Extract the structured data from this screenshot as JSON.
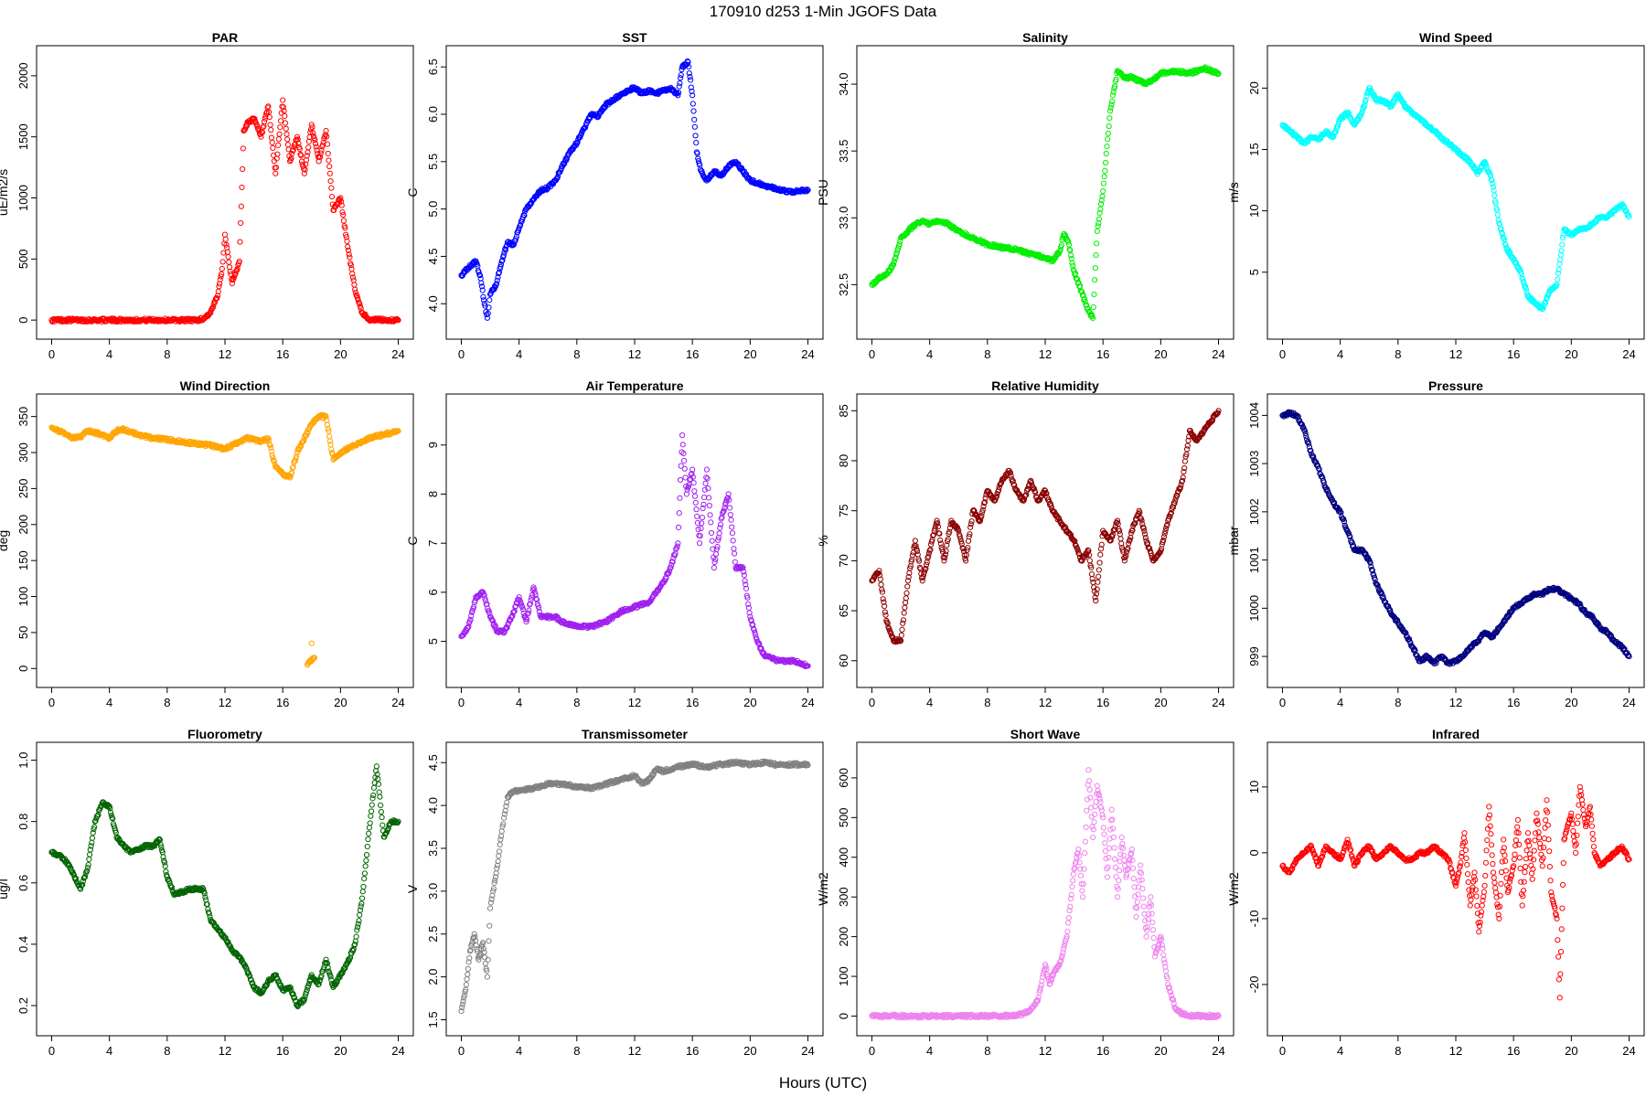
{
  "title": "170910   d253   1-Min  JGOFS Data",
  "xlabel": "Hours (UTC)",
  "chart_data": [
    {
      "type": "scatter",
      "title": "PAR",
      "ylabel": "uE/m2/s",
      "color": "#ff0000",
      "xlim": [
        0,
        24
      ],
      "ylim": [
        -60,
        2150
      ],
      "x_ticks": [
        "0",
        "4",
        "8",
        "12",
        "16",
        "20",
        "24"
      ],
      "y_ticks": [
        "0",
        "500",
        "1000",
        "1500",
        "2000"
      ],
      "x": [
        0,
        2,
        4,
        6,
        8,
        10,
        10.5,
        11,
        11.5,
        11.8,
        12,
        12.5,
        13,
        13.3,
        13.6,
        14,
        14.5,
        15,
        15.5,
        16,
        16.5,
        17,
        17.5,
        18,
        18.5,
        19,
        19.5,
        20,
        20.5,
        21,
        21.5,
        22,
        23,
        24
      ],
      "y": [
        0,
        0,
        0,
        0,
        0,
        0,
        10,
        60,
        200,
        420,
        700,
        300,
        480,
        1550,
        1620,
        1650,
        1500,
        1750,
        1200,
        1800,
        1300,
        1500,
        1200,
        1600,
        1300,
        1550,
        900,
        1000,
        600,
        250,
        60,
        5,
        0,
        0
      ]
    },
    {
      "type": "scatter",
      "title": "SST",
      "ylabel": "C",
      "color": "#0000ff",
      "xlim": [
        0,
        24
      ],
      "ylim": [
        3.75,
        6.6
      ],
      "x_ticks": [
        "0",
        "4",
        "8",
        "12",
        "16",
        "20",
        "24"
      ],
      "y_ticks": [
        "4.0",
        "4.5",
        "5.0",
        "5.5",
        "6.0",
        "6.5"
      ],
      "x": [
        0,
        0.5,
        1,
        1.3,
        1.6,
        1.8,
        2,
        2.4,
        2.8,
        3.2,
        3.6,
        4,
        4.5,
        5,
        5.5,
        6,
        6.5,
        7,
        7.5,
        8,
        8.5,
        9,
        9.5,
        10,
        10.5,
        11,
        11.5,
        12,
        12.5,
        13,
        13.5,
        14,
        14.5,
        15,
        15.3,
        15.7,
        16,
        16.3,
        16.6,
        17,
        17.5,
        18,
        18.5,
        19,
        19.5,
        20,
        21,
        22,
        23,
        24
      ],
      "y": [
        4.3,
        4.38,
        4.45,
        4.3,
        4.0,
        3.85,
        4.1,
        4.2,
        4.45,
        4.65,
        4.62,
        4.8,
        5.0,
        5.1,
        5.2,
        5.22,
        5.3,
        5.45,
        5.6,
        5.7,
        5.85,
        6.0,
        5.98,
        6.1,
        6.15,
        6.2,
        6.25,
        6.28,
        6.22,
        6.25,
        6.22,
        6.25,
        6.28,
        6.2,
        6.5,
        6.55,
        6.2,
        5.6,
        5.4,
        5.3,
        5.4,
        5.35,
        5.45,
        5.5,
        5.4,
        5.3,
        5.25,
        5.2,
        5.18,
        5.2
      ]
    },
    {
      "type": "scatter",
      "title": "Salinity",
      "ylabel": "PSU",
      "color": "#00ee00",
      "xlim": [
        0,
        24
      ],
      "ylim": [
        32.18,
        34.2
      ],
      "x_ticks": [
        "0",
        "4",
        "8",
        "12",
        "16",
        "20",
        "24"
      ],
      "y_ticks": [
        "32.5",
        "33.0",
        "33.5",
        "34.0"
      ],
      "x": [
        0,
        0.5,
        1,
        1.5,
        2,
        2.5,
        3,
        3.5,
        4,
        4.5,
        5,
        6,
        7,
        8,
        9,
        10,
        11,
        12,
        12.5,
        13,
        13.3,
        13.6,
        14,
        14.5,
        15,
        15.3,
        15.6,
        16,
        16.5,
        17,
        17.5,
        18,
        19,
        20,
        21,
        22,
        23,
        24
      ],
      "y": [
        32.5,
        32.55,
        32.58,
        32.65,
        32.85,
        32.9,
        32.95,
        32.98,
        32.95,
        32.98,
        32.97,
        32.9,
        32.85,
        32.8,
        32.78,
        32.76,
        32.73,
        32.7,
        32.68,
        32.75,
        32.88,
        32.82,
        32.6,
        32.45,
        32.3,
        32.25,
        32.9,
        33.2,
        33.8,
        34.1,
        34.05,
        34.05,
        34.0,
        34.08,
        34.1,
        34.08,
        34.12,
        34.08
      ]
    },
    {
      "type": "scatter",
      "title": "Wind Speed",
      "ylabel": "m/s",
      "color": "#00ffff",
      "xlim": [
        0,
        24
      ],
      "ylim": [
        0.5,
        22.5
      ],
      "x_ticks": [
        "0",
        "4",
        "8",
        "12",
        "16",
        "20",
        "24"
      ],
      "y_ticks": [
        "5",
        "10",
        "15",
        "20"
      ],
      "x": [
        0,
        0.5,
        1,
        1.5,
        2,
        2.5,
        3,
        3.5,
        4,
        4.5,
        5,
        5.5,
        6,
        6.5,
        7,
        7.5,
        8,
        8.5,
        9,
        9.5,
        10,
        10.5,
        11,
        11.5,
        12,
        12.5,
        13,
        13.5,
        14,
        14.5,
        15,
        15.5,
        16,
        16.5,
        17,
        17.5,
        18,
        18.5,
        19,
        19.5,
        20,
        20.5,
        21,
        21.5,
        22,
        22.5,
        23,
        23.5,
        24
      ],
      "y": [
        17,
        16.5,
        16,
        15.5,
        16,
        15.8,
        16.5,
        16,
        17.5,
        18,
        17,
        18,
        20,
        19,
        19,
        18.5,
        19.5,
        18.5,
        18,
        17.5,
        17,
        16.5,
        16,
        15.5,
        15,
        14.5,
        14,
        13,
        14,
        12.5,
        9,
        7,
        6,
        5,
        3,
        2.5,
        2,
        3.5,
        4,
        8.5,
        8,
        8.5,
        8.5,
        9,
        9.5,
        9.5,
        10,
        10.5,
        9.5
      ]
    },
    {
      "type": "scatter",
      "title": "Wind Direction",
      "ylabel": "deg",
      "color": "#ffa500",
      "xlim": [
        0,
        24
      ],
      "ylim": [
        -10,
        365
      ],
      "x_ticks": [
        "0",
        "4",
        "8",
        "12",
        "16",
        "20",
        "24"
      ],
      "y_ticks": [
        "0",
        "50",
        "100",
        "150",
        "200",
        "250",
        "300",
        "350"
      ],
      "x": [
        0,
        0.5,
        1,
        1.5,
        2,
        2.5,
        3,
        3.5,
        4,
        4.5,
        5,
        5.5,
        6,
        7,
        8,
        9,
        10,
        11,
        12,
        12.5,
        13,
        13.5,
        14,
        14.5,
        15,
        15.5,
        16,
        16.5,
        17,
        17.5,
        18,
        18.5,
        19,
        19.5,
        20,
        21,
        22,
        23,
        24,
        18,
        17.7,
        18.2
      ],
      "y": [
        335,
        330,
        325,
        320,
        322,
        330,
        328,
        325,
        320,
        330,
        332,
        328,
        325,
        320,
        318,
        315,
        312,
        310,
        305,
        310,
        315,
        320,
        318,
        315,
        320,
        280,
        270,
        265,
        300,
        320,
        340,
        350,
        350,
        290,
        300,
        310,
        320,
        325,
        330,
        35,
        5,
        15
      ]
    },
    {
      "type": "scatter",
      "title": "Air Temperature",
      "ylabel": "C",
      "color": "#a020f0",
      "xlim": [
        0,
        24
      ],
      "ylim": [
        4.3,
        9.8
      ],
      "x_ticks": [
        "0",
        "4",
        "8",
        "12",
        "16",
        "20",
        "24"
      ],
      "y_ticks": [
        "5",
        "6",
        "7",
        "8",
        "9"
      ],
      "x": [
        0,
        0.5,
        1,
        1.5,
        2,
        2.5,
        3,
        3.5,
        4,
        4.5,
        5,
        5.5,
        6,
        6.5,
        7,
        8,
        9,
        10,
        11,
        12,
        13,
        13.5,
        14,
        14.5,
        15,
        15.3,
        15.6,
        16,
        16.5,
        17,
        17.5,
        18,
        18.5,
        19,
        19.5,
        20,
        20.5,
        21,
        22,
        23,
        24
      ],
      "y": [
        5.1,
        5.3,
        5.9,
        6.0,
        5.5,
        5.2,
        5.2,
        5.5,
        5.9,
        5.4,
        6.1,
        5.5,
        5.5,
        5.5,
        5.4,
        5.3,
        5.3,
        5.4,
        5.6,
        5.7,
        5.8,
        6.0,
        6.2,
        6.5,
        7.0,
        9.2,
        8.0,
        8.5,
        7.0,
        8.5,
        6.5,
        7.5,
        8.0,
        6.5,
        6.5,
        5.5,
        5.0,
        4.7,
        4.6,
        4.6,
        4.5
      ]
    },
    {
      "type": "scatter",
      "title": "Relative Humidity",
      "ylabel": "%",
      "color": "#8b0000",
      "xlim": [
        0,
        24
      ],
      "ylim": [
        58.5,
        85.5
      ],
      "x_ticks": [
        "0",
        "4",
        "8",
        "12",
        "16",
        "20",
        "24"
      ],
      "y_ticks": [
        "60",
        "65",
        "70",
        "75",
        "80",
        "85"
      ],
      "x": [
        0,
        0.5,
        1,
        1.5,
        2,
        2.5,
        3,
        3.5,
        4,
        4.5,
        5,
        5.5,
        6,
        6.5,
        7,
        7.5,
        8,
        8.5,
        9,
        9.5,
        10,
        10.5,
        11,
        11.5,
        12,
        12.5,
        13,
        13.5,
        14,
        14.5,
        15,
        15.5,
        16,
        16.5,
        17,
        17.5,
        18,
        18.5,
        19,
        19.5,
        20,
        20.5,
        21,
        21.5,
        22,
        22.5,
        23,
        23.5,
        24
      ],
      "y": [
        68,
        69,
        64,
        62,
        62,
        68,
        72,
        68,
        71,
        74,
        70,
        74,
        73,
        70,
        75,
        74,
        77,
        76,
        78,
        79,
        77,
        76,
        78,
        76,
        77,
        75,
        74,
        73,
        72,
        70,
        71,
        66,
        73,
        72,
        74,
        70,
        73,
        75,
        72,
        70,
        71,
        74,
        76,
        78,
        83,
        82,
        83,
        84,
        85
      ]
    },
    {
      "type": "scatter",
      "title": "Pressure",
      "ylabel": "mbar",
      "color": "#000080",
      "xlim": [
        0,
        24
      ],
      "ylim": [
        998.6,
        1004.2
      ],
      "x_ticks": [
        "0",
        "4",
        "8",
        "12",
        "16",
        "20",
        "24"
      ],
      "y_ticks": [
        "999",
        "1000",
        "1001",
        "1002",
        "1003",
        "1004"
      ],
      "x": [
        0,
        0.5,
        1,
        1.5,
        2,
        2.5,
        3,
        3.5,
        4,
        4.5,
        5,
        5.5,
        6,
        6.5,
        7,
        7.5,
        8,
        8.5,
        9,
        9.5,
        10,
        10.5,
        11,
        11.5,
        12,
        12.5,
        13,
        13.5,
        14,
        14.5,
        15,
        15.5,
        16,
        16.5,
        17,
        17.5,
        18,
        18.5,
        19,
        19.5,
        20,
        20.5,
        21,
        21.5,
        22,
        22.5,
        23,
        23.5,
        24
      ],
      "y": [
        1004,
        1004.05,
        1004,
        1003.7,
        1003.2,
        1002.9,
        1002.5,
        1002.2,
        1002,
        1001.6,
        1001.2,
        1001.2,
        1001,
        1000.5,
        1000.2,
        999.9,
        999.7,
        999.5,
        999.2,
        998.9,
        999,
        998.85,
        999,
        998.85,
        998.9,
        999,
        999.2,
        999.3,
        999.5,
        999.4,
        999.6,
        999.8,
        1000,
        1000.1,
        1000.2,
        1000.3,
        1000.3,
        1000.4,
        1000.4,
        1000.3,
        1000.2,
        1000.1,
        999.9,
        999.8,
        999.6,
        999.5,
        999.3,
        999.2,
        999
      ]
    },
    {
      "type": "scatter",
      "title": "Fluorometry",
      "ylabel": "ug/l",
      "color": "#006400",
      "xlim": [
        0,
        24
      ],
      "ylim": [
        0.14,
        1.02
      ],
      "x_ticks": [
        "0",
        "4",
        "8",
        "12",
        "16",
        "20",
        "24"
      ],
      "y_ticks": [
        "0.2",
        "0.4",
        "0.6",
        "0.8",
        "1.0"
      ],
      "x": [
        0,
        0.5,
        1,
        1.5,
        2,
        2.5,
        3,
        3.5,
        4,
        4.5,
        5,
        5.5,
        6,
        6.5,
        7,
        7.5,
        8,
        8.5,
        9,
        9.5,
        10,
        10.5,
        11,
        11.5,
        12,
        12.5,
        13,
        13.5,
        14,
        14.5,
        15,
        15.5,
        16,
        16.5,
        17,
        17.5,
        18,
        18.5,
        19,
        19.5,
        20,
        20.5,
        21,
        21.5,
        22,
        22.5,
        23,
        23.5,
        24
      ],
      "y": [
        0.7,
        0.69,
        0.67,
        0.63,
        0.58,
        0.65,
        0.8,
        0.86,
        0.85,
        0.75,
        0.72,
        0.7,
        0.71,
        0.72,
        0.72,
        0.74,
        0.62,
        0.56,
        0.57,
        0.58,
        0.58,
        0.58,
        0.48,
        0.45,
        0.42,
        0.38,
        0.36,
        0.32,
        0.26,
        0.24,
        0.28,
        0.3,
        0.25,
        0.26,
        0.2,
        0.22,
        0.3,
        0.27,
        0.35,
        0.26,
        0.3,
        0.34,
        0.4,
        0.55,
        0.78,
        0.98,
        0.75,
        0.8,
        0.8
      ]
    },
    {
      "type": "scatter",
      "title": "Transmissometer",
      "ylabel": "V",
      "color": "#808080",
      "xlim": [
        0,
        24
      ],
      "ylim": [
        1.45,
        4.6
      ],
      "x_ticks": [
        "0",
        "4",
        "8",
        "12",
        "16",
        "20",
        "24"
      ],
      "y_ticks": [
        "1.5",
        "2.0",
        "2.5",
        "3.0",
        "3.5",
        "4.0",
        "4.5"
      ],
      "x": [
        0,
        0.3,
        0.6,
        0.9,
        1.2,
        1.5,
        1.8,
        2,
        2.2,
        2.5,
        2.8,
        3,
        3.2,
        3.5,
        4,
        5,
        6,
        7,
        8,
        9,
        10,
        11,
        12,
        12.5,
        13,
        13.5,
        14,
        15,
        16,
        17,
        18,
        19,
        20,
        21,
        22,
        23,
        24
      ],
      "y": [
        1.6,
        1.85,
        2.3,
        2.5,
        2.2,
        2.4,
        2.0,
        2.8,
        3.0,
        3.3,
        3.7,
        3.9,
        4.1,
        4.15,
        4.18,
        4.2,
        4.25,
        4.25,
        4.22,
        4.2,
        4.25,
        4.3,
        4.35,
        4.25,
        4.3,
        4.42,
        4.4,
        4.45,
        4.48,
        4.45,
        4.48,
        4.5,
        4.48,
        4.5,
        4.47,
        4.48,
        4.47
      ]
    },
    {
      "type": "scatter",
      "title": "Short Wave",
      "ylabel": "W/m2",
      "color": "#ee82ee",
      "xlim": [
        0,
        24
      ],
      "ylim": [
        -20,
        660
      ],
      "x_ticks": [
        "0",
        "4",
        "8",
        "12",
        "16",
        "20",
        "24"
      ],
      "y_ticks": [
        "0",
        "100",
        "200",
        "300",
        "400",
        "500",
        "600"
      ],
      "x": [
        0,
        2,
        4,
        6,
        8,
        10,
        10.5,
        11,
        11.5,
        12,
        12.3,
        12.6,
        13,
        13.5,
        14,
        14.3,
        14.6,
        15,
        15.3,
        15.6,
        16,
        16.3,
        16.6,
        17,
        17.3,
        17.6,
        18,
        18.3,
        18.6,
        19,
        19.3,
        19.6,
        20,
        20.5,
        21,
        21.5,
        22,
        23,
        24
      ],
      "y": [
        0,
        0,
        0,
        0,
        0,
        2,
        5,
        15,
        40,
        130,
        80,
        110,
        130,
        200,
        370,
        420,
        300,
        620,
        450,
        580,
        500,
        350,
        520,
        300,
        450,
        350,
        420,
        250,
        380,
        200,
        300,
        150,
        200,
        80,
        20,
        5,
        1,
        0,
        0
      ]
    },
    {
      "type": "scatter",
      "title": "Infrared",
      "ylabel": "W/m2",
      "color": "#ff0000",
      "xlim": [
        0,
        24
      ],
      "ylim": [
        -26,
        15
      ],
      "x_ticks": [
        "0",
        "4",
        "8",
        "12",
        "16",
        "20",
        "24"
      ],
      "y_ticks": [
        "-20",
        "-10",
        "0",
        "10"
      ],
      "x": [
        0,
        0.5,
        1,
        1.5,
        2,
        2.5,
        3,
        3.5,
        4,
        4.5,
        5,
        5.5,
        6,
        6.5,
        7,
        7.5,
        8,
        8.5,
        9,
        9.5,
        10,
        10.5,
        11,
        11.5,
        12,
        12.3,
        12.6,
        13,
        13.3,
        13.6,
        14,
        14.3,
        14.6,
        15,
        15.3,
        15.6,
        16,
        16.3,
        16.6,
        17,
        17.3,
        17.6,
        18,
        18.3,
        18.6,
        19,
        19.2,
        19.5,
        20,
        20.3,
        20.6,
        21,
        21.3,
        21.6,
        22,
        22.5,
        23,
        23.5,
        24
      ],
      "y": [
        -2,
        -3,
        -1,
        0,
        1,
        -2,
        1,
        0,
        -1,
        2,
        -2,
        0,
        1,
        -1,
        0,
        1,
        0,
        -1,
        -1,
        0,
        0,
        1,
        0,
        -1,
        -5,
        -2,
        3,
        -8,
        -3,
        -12,
        -5,
        7,
        -3,
        -10,
        2,
        -6,
        -2,
        5,
        -8,
        3,
        -4,
        6,
        -2,
        8,
        -6,
        -10,
        -22,
        2,
        6,
        0,
        10,
        4,
        7,
        0,
        -2,
        -1,
        0,
        1,
        -1
      ]
    }
  ]
}
